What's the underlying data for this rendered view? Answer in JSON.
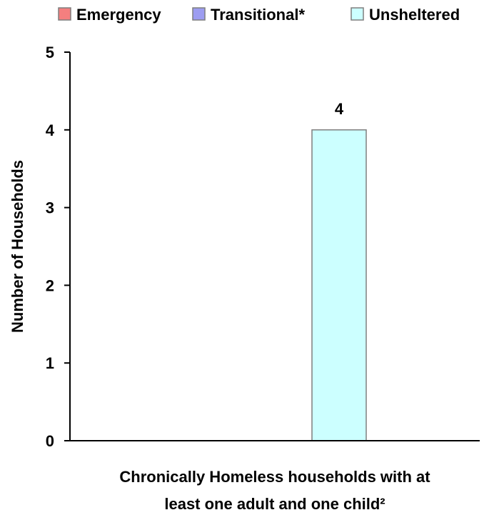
{
  "chart_data": {
    "type": "bar",
    "categories": [
      "Chronically Homeless households with at least one adult and one child²"
    ],
    "category_label_lines": [
      "Chronically Homeless households with at",
      "least one adult and one child²"
    ],
    "series": [
      {
        "name": "Emergency",
        "values": [
          0
        ],
        "color": "#f47f7f"
      },
      {
        "name": "Transitional*",
        "values": [
          0
        ],
        "color": "#9d9df1"
      },
      {
        "name": "Unsheltered",
        "values": [
          4
        ],
        "color": "#ccffff"
      }
    ],
    "data_labels": [
      {
        "series": "Unsheltered",
        "category_index": 0,
        "text": "4"
      }
    ],
    "xlabel": "",
    "ylabel": "Number of Households",
    "ylim": [
      0,
      5
    ],
    "yticks": [
      0,
      1,
      2,
      3,
      4,
      5
    ],
    "grid": false,
    "legend_position": "top",
    "bar_stroke_color": "#7f7f7f",
    "axis_color": "#000000"
  }
}
